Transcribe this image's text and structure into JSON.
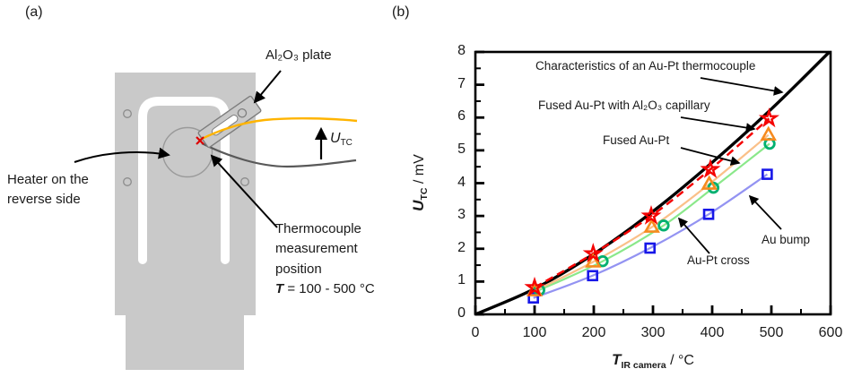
{
  "figure": {
    "panel_a_label": "(a)",
    "panel_b_label": "(b)"
  },
  "panel_a": {
    "al2o3_plate_label": "Al₂O₃ plate",
    "heater_label_line1": "Heater on the",
    "heater_label_line2": "reverse side",
    "tc_position_line1": "Thermocouple",
    "tc_position_line2": "measurement",
    "tc_position_line3": "position",
    "tc_temp_symbol": "T",
    "tc_temp_range": " = 100 - 500 °C",
    "utc_symbol": "U",
    "utc_subscript": "TC"
  },
  "chart_data": {
    "type": "line",
    "title": "",
    "xlabel": {
      "symbol": "T",
      "subscript": "IR camera",
      "unit": " / °C"
    },
    "ylabel": {
      "symbol": "U",
      "subscript": "TC",
      "unit": " / mV"
    },
    "xlim": [
      0,
      600
    ],
    "ylim": [
      0,
      8
    ],
    "x_major_ticks": [
      0,
      100,
      200,
      300,
      400,
      500,
      600
    ],
    "y_major_ticks": [
      0,
      1,
      2,
      3,
      4,
      5,
      6,
      7,
      8
    ],
    "x_minor_step": 50,
    "y_minor_step": 0.5,
    "grid": false,
    "legend_position": "arrow-annotations-inside-plot",
    "series": [
      {
        "id": "au_pt_reference",
        "name": "Characteristics of an Au-Pt thermocouple",
        "marker": "none",
        "line": "solid",
        "line_color": "#000000",
        "line_width": 3.4,
        "points": [
          [
            0,
            0
          ],
          [
            100,
            0.78
          ],
          [
            200,
            1.84
          ],
          [
            300,
            3.14
          ],
          [
            400,
            4.63
          ],
          [
            500,
            6.26
          ],
          [
            598,
            8.0
          ]
        ]
      },
      {
        "id": "au_bump",
        "name": "Au bump",
        "marker": "square",
        "marker_color": "#1717E8",
        "line": "solid",
        "line_color": "#9393F2",
        "line_width": 2.2,
        "points": [
          [
            98,
            0.5
          ],
          [
            198,
            1.18
          ],
          [
            295,
            2.02
          ],
          [
            394,
            3.05
          ],
          [
            493,
            4.27
          ]
        ]
      },
      {
        "id": "au_pt_cross",
        "name": "Au-Pt cross",
        "marker": "circle",
        "marker_color": "#00B070",
        "line": "solid",
        "line_color": "#8AE88A",
        "line_width": 2.2,
        "points": [
          [
            108,
            0.74
          ],
          [
            215,
            1.62
          ],
          [
            318,
            2.71
          ],
          [
            402,
            3.86
          ],
          [
            497,
            5.2
          ]
        ]
      },
      {
        "id": "fused_au_pt",
        "name": "Fused Au-Pt",
        "marker": "triangle",
        "marker_color": "#F68B1F",
        "line": "solid",
        "line_color": "#FAC089",
        "line_width": 2.2,
        "points": [
          [
            100,
            0.72
          ],
          [
            199,
            1.6
          ],
          [
            298,
            2.66
          ],
          [
            395,
            3.97
          ],
          [
            495,
            5.47
          ]
        ]
      },
      {
        "id": "fused_au_pt_capillary",
        "name": "Fused Au-Pt with Al₂O₃ capillary",
        "marker": "star",
        "marker_color": "#F40000",
        "line": "dashed",
        "line_color": "#F40000",
        "line_width": 2.5,
        "points": [
          [
            100,
            0.82
          ],
          [
            199,
            1.85
          ],
          [
            297,
            3.0
          ],
          [
            397,
            4.42
          ],
          [
            496,
            5.97
          ]
        ]
      }
    ],
    "annotations": [
      {
        "text": "Characteristics of an Au-Pt thermocouple",
        "target_series": "au_pt_reference"
      },
      {
        "text": "Fused Au-Pt with Al₂O₃ capillary",
        "target_series": "fused_au_pt_capillary"
      },
      {
        "text": "Fused Au-Pt",
        "target_series": "fused_au_pt"
      },
      {
        "text": "Au-Pt cross",
        "target_series": "au_pt_cross"
      },
      {
        "text": "Au bump",
        "target_series": "au_bump"
      }
    ]
  }
}
